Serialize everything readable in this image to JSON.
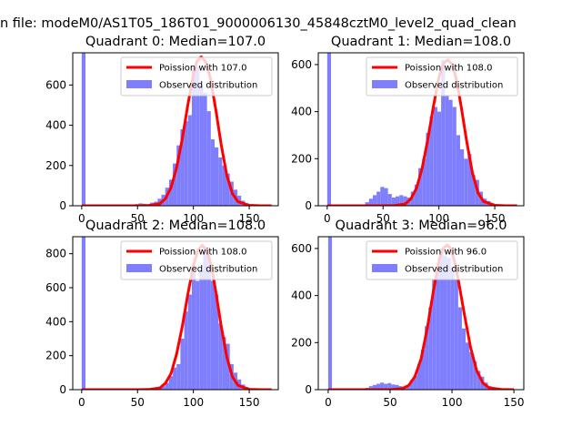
{
  "figure": {
    "suptitle": "n file: modeM0/AS1T05_186T01_9000006130_45848cztM0_level2_quad_clean"
  },
  "colors": {
    "hist_fill": "#7f7ffe",
    "fit_line": "#ff0000",
    "axes": "#000000",
    "background": "#ffffff"
  },
  "chart_data": [
    {
      "type": "bar",
      "title": "Quadrant 0: Median=107.0",
      "xlabel": "",
      "ylabel": "",
      "xlim": [
        -8,
        176
      ],
      "ylim": [
        0,
        760
      ],
      "xticks": [
        0,
        50,
        100,
        150
      ],
      "yticks": [
        0,
        200,
        400,
        600
      ],
      "grid": false,
      "legend_position": "upper right",
      "legend": [
        "Poission with 107.0",
        "Observed distribution"
      ],
      "median": 107.0,
      "bin_width": 3.4,
      "hist_x": [
        0.0,
        3.4,
        6.8,
        10.2,
        13.6,
        17.0,
        20.4,
        23.8,
        27.2,
        30.6,
        34.0,
        37.4,
        40.8,
        44.2,
        47.6,
        51.0,
        54.4,
        57.8,
        61.2,
        64.6,
        68.0,
        71.4,
        74.8,
        78.2,
        81.6,
        85.0,
        88.4,
        91.8,
        95.2,
        98.6,
        102.0,
        105.4,
        108.8,
        112.2,
        115.6,
        119.0,
        122.4,
        125.8,
        129.2,
        132.6,
        136.0,
        139.4,
        142.8,
        146.2,
        149.6,
        153.0,
        156.4,
        159.8,
        163.2
      ],
      "hist_y": [
        760,
        0,
        0,
        0,
        0,
        0,
        0,
        0,
        0,
        0,
        0,
        0,
        0,
        0,
        8,
        12,
        10,
        8,
        15,
        20,
        35,
        55,
        90,
        130,
        210,
        300,
        380,
        420,
        450,
        680,
        690,
        600,
        560,
        470,
        330,
        290,
        240,
        200,
        160,
        120,
        80,
        50,
        25,
        12,
        6,
        3,
        2,
        1,
        0
      ],
      "fit_x": [
        0,
        10,
        20,
        30,
        40,
        50,
        60,
        70,
        75,
        80,
        85,
        90,
        95,
        100,
        103,
        107,
        111,
        115,
        120,
        125,
        130,
        135,
        140,
        150,
        160,
        170
      ],
      "fit_y": [
        0,
        0,
        0,
        0,
        0,
        0,
        1,
        10,
        35,
        90,
        190,
        330,
        500,
        650,
        715,
        740,
        715,
        640,
        480,
        300,
        150,
        60,
        20,
        2,
        0,
        0
      ]
    },
    {
      "type": "bar",
      "title": "Quadrant 1: Median=108.0",
      "xlabel": "",
      "ylabel": "",
      "xlim": [
        -8,
        176
      ],
      "ylim": [
        0,
        650
      ],
      "xticks": [
        0,
        50,
        100,
        150
      ],
      "yticks": [
        0,
        200,
        400,
        600
      ],
      "grid": false,
      "legend_position": "upper right",
      "legend": [
        "Poission with 108.0",
        "Observed distribution"
      ],
      "median": 108.0,
      "bin_width": 3.4,
      "hist_x": [
        0.0,
        3.4,
        6.8,
        10.2,
        13.6,
        17.0,
        20.4,
        23.8,
        27.2,
        30.6,
        34.0,
        37.4,
        40.8,
        44.2,
        47.6,
        51.0,
        54.4,
        57.8,
        61.2,
        64.6,
        68.0,
        71.4,
        74.8,
        78.2,
        81.6,
        85.0,
        88.4,
        91.8,
        95.2,
        98.6,
        102.0,
        105.4,
        108.8,
        112.2,
        115.6,
        119.0,
        122.4,
        125.8,
        129.2,
        132.6,
        136.0,
        139.4,
        142.8,
        146.2,
        149.6,
        153.0,
        156.4,
        159.8,
        163.2
      ],
      "hist_y": [
        650,
        0,
        0,
        0,
        0,
        0,
        0,
        0,
        0,
        5,
        15,
        30,
        45,
        60,
        80,
        75,
        50,
        35,
        40,
        45,
        40,
        35,
        60,
        90,
        160,
        200,
        310,
        380,
        420,
        400,
        620,
        470,
        450,
        420,
        300,
        240,
        200,
        220,
        130,
        110,
        60,
        30,
        20,
        10,
        5,
        2,
        0,
        0,
        0
      ],
      "fit_x": [
        0,
        10,
        20,
        30,
        40,
        50,
        60,
        70,
        75,
        80,
        85,
        90,
        95,
        100,
        104,
        108,
        112,
        116,
        120,
        125,
        130,
        135,
        140,
        150,
        160,
        170
      ],
      "fit_y": [
        0,
        0,
        0,
        0,
        0,
        0,
        1,
        8,
        30,
        75,
        160,
        280,
        420,
        545,
        605,
        620,
        600,
        530,
        420,
        270,
        140,
        55,
        18,
        2,
        0,
        0
      ]
    },
    {
      "type": "bar",
      "title": "Quadrant 2: Median=108.0",
      "xlabel": "",
      "ylabel": "",
      "xlim": [
        -8,
        176
      ],
      "ylim": [
        0,
        900
      ],
      "xticks": [
        0,
        50,
        100,
        150
      ],
      "yticks": [
        0,
        200,
        400,
        600,
        800
      ],
      "grid": false,
      "legend_position": "upper right",
      "legend": [
        "Poission with 108.0",
        "Observed distribution"
      ],
      "median": 108.0,
      "bin_width": 3.4,
      "hist_x": [
        0.0,
        3.4,
        6.8,
        10.2,
        13.6,
        17.0,
        20.4,
        23.8,
        27.2,
        30.6,
        34.0,
        37.4,
        40.8,
        44.2,
        47.6,
        51.0,
        54.4,
        57.8,
        61.2,
        64.6,
        68.0,
        71.4,
        74.8,
        78.2,
        81.6,
        85.0,
        88.4,
        91.8,
        95.2,
        98.6,
        102.0,
        105.4,
        108.8,
        112.2,
        115.6,
        119.0,
        122.4,
        125.8,
        129.2,
        132.6,
        136.0,
        139.4,
        142.8,
        146.2,
        149.6,
        153.0,
        156.4,
        159.8,
        163.2
      ],
      "hist_y": [
        900,
        0,
        0,
        0,
        0,
        0,
        0,
        0,
        0,
        0,
        0,
        0,
        0,
        0,
        0,
        0,
        0,
        0,
        0,
        5,
        10,
        20,
        40,
        80,
        130,
        150,
        300,
        460,
        560,
        710,
        640,
        700,
        840,
        780,
        640,
        560,
        390,
        310,
        270,
        150,
        100,
        60,
        30,
        15,
        7,
        3,
        1,
        0,
        0
      ],
      "fit_x": [
        0,
        10,
        20,
        30,
        40,
        50,
        60,
        70,
        75,
        80,
        85,
        90,
        95,
        100,
        104,
        108,
        112,
        116,
        120,
        125,
        130,
        135,
        140,
        150,
        160,
        170
      ],
      "fit_y": [
        0,
        0,
        0,
        0,
        0,
        0,
        1,
        10,
        38,
        95,
        210,
        370,
        560,
        730,
        820,
        850,
        820,
        730,
        580,
        370,
        190,
        75,
        25,
        2,
        0,
        0
      ]
    },
    {
      "type": "bar",
      "title": "Quadrant 3: Median=96.0",
      "xlabel": "",
      "ylabel": "",
      "xlim": [
        -8,
        158
      ],
      "ylim": [
        0,
        650
      ],
      "xticks": [
        0,
        50,
        100,
        150
      ],
      "yticks": [
        0,
        200,
        400,
        600
      ],
      "grid": false,
      "legend_position": "upper right",
      "legend": [
        "Poission with 96.0",
        "Observed distribution"
      ],
      "median": 96.0,
      "bin_width": 3.0,
      "hist_x": [
        0,
        3,
        6,
        9,
        12,
        15,
        18,
        21,
        24,
        27,
        30,
        33,
        36,
        39,
        42,
        45,
        48,
        51,
        54,
        57,
        60,
        63,
        66,
        69,
        72,
        75,
        78,
        81,
        84,
        87,
        90,
        93,
        96,
        99,
        102,
        105,
        108,
        111,
        114,
        117,
        120,
        123,
        126,
        129,
        132,
        135,
        138,
        141,
        144
      ],
      "hist_y": [
        650,
        0,
        0,
        0,
        0,
        0,
        0,
        0,
        0,
        0,
        8,
        15,
        20,
        25,
        30,
        25,
        28,
        22,
        20,
        15,
        12,
        20,
        40,
        60,
        110,
        170,
        270,
        350,
        470,
        500,
        600,
        570,
        560,
        520,
        470,
        350,
        260,
        200,
        160,
        120,
        80,
        55,
        30,
        15,
        7,
        3,
        1,
        0,
        0
      ],
      "fit_x": [
        0,
        10,
        20,
        30,
        40,
        50,
        60,
        65,
        70,
        75,
        80,
        85,
        90,
        93,
        96,
        99,
        102,
        105,
        110,
        115,
        120,
        125,
        130,
        140,
        150
      ],
      "fit_y": [
        0,
        0,
        0,
        0,
        0,
        0,
        5,
        18,
        55,
        130,
        260,
        420,
        560,
        600,
        615,
        600,
        545,
        470,
        320,
        180,
        80,
        28,
        8,
        1,
        0
      ]
    }
  ]
}
